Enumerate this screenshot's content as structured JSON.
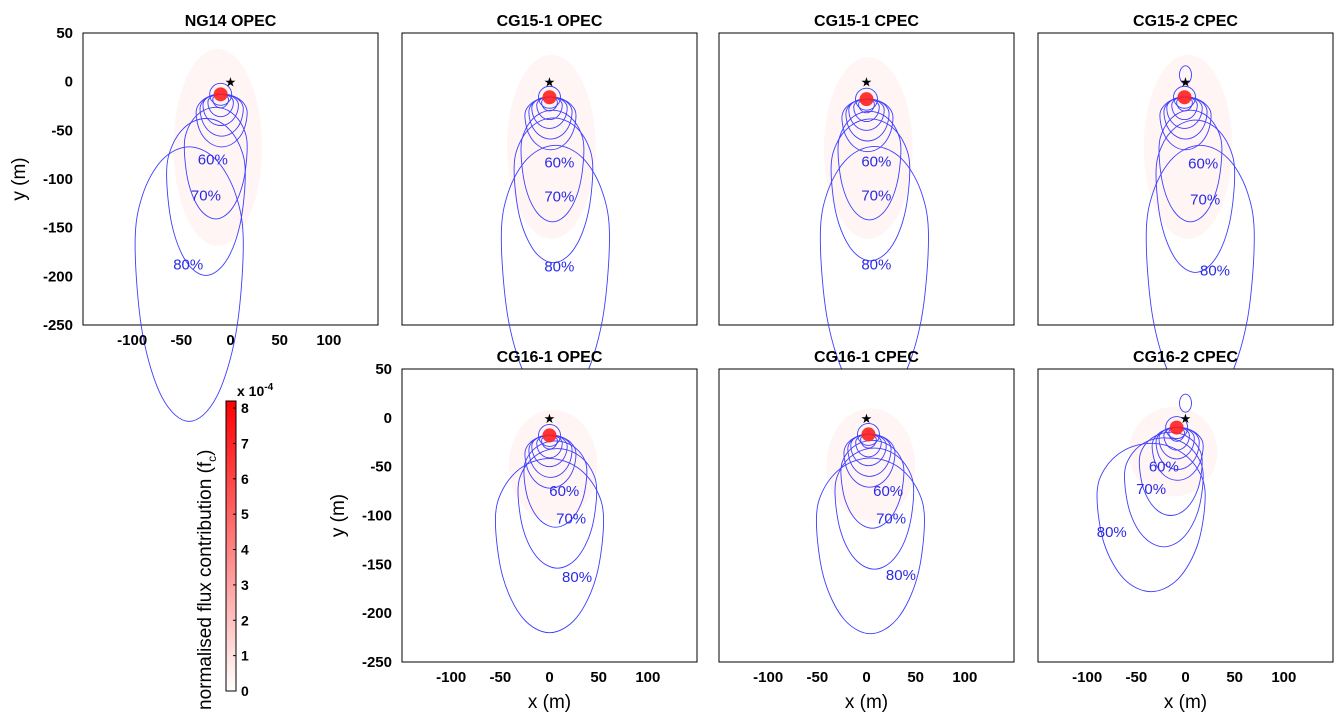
{
  "chart_data": {
    "type": "contour",
    "xlim": [
      -150,
      150
    ],
    "ylim": [
      -250,
      50
    ],
    "x_ticks": [
      -100,
      -50,
      0,
      50,
      100
    ],
    "y_ticks": [
      50,
      0,
      -50,
      -100,
      -150,
      -200,
      -250
    ],
    "xlabel": "x (m)",
    "ylabel": "y (m)",
    "contour_labels": [
      "60%",
      "70%",
      "80%"
    ],
    "tower_location": [
      0,
      0
    ],
    "colorbar": {
      "label": "normalised flux contribution (f",
      "label_sub": "c",
      "label_close": ")",
      "exponent_prefix": "x 10",
      "exponent_power": "-4",
      "min": 0,
      "max": 8.2,
      "ticks": [
        "0",
        "1",
        "2",
        "3",
        "4",
        "5",
        "6",
        "7",
        "8"
      ],
      "color_low": "#ffffff",
      "color_high": "#ff0000"
    },
    "panels": [
      {
        "title": "NG14 OPEC",
        "peak": [
          -10,
          -13
        ],
        "c60": [
          -15,
          -67
        ],
        "c70": [
          -25,
          -95
        ],
        "c80": [
          -42,
          -167
        ],
        "l60": [
          -18,
          -85
        ],
        "l70": [
          -25,
          -122
        ],
        "l80": [
          -43,
          -193
        ],
        "loop": false
      },
      {
        "title": "CG15-1 OPEC",
        "peak": [
          0,
          -16
        ],
        "c60": [
          3,
          -70
        ],
        "c70": [
          4,
          -90
        ],
        "c80": [
          6,
          -160
        ],
        "l60": [
          10,
          -88
        ],
        "l70": [
          10,
          -123
        ],
        "l80": [
          10,
          -195
        ],
        "loop": false
      },
      {
        "title": "CG15-1 CPEC",
        "peak": [
          0,
          -18
        ],
        "c60": [
          3,
          -70
        ],
        "c70": [
          4,
          -90
        ],
        "c80": [
          8,
          -160
        ],
        "l60": [
          10,
          -87
        ],
        "l70": [
          10,
          -122
        ],
        "l80": [
          10,
          -193
        ],
        "loop": false
      },
      {
        "title": "CG15-2 CPEC",
        "peak": [
          -1,
          -16
        ],
        "c60": [
          5,
          -70
        ],
        "c70": [
          10,
          -95
        ],
        "c80": [
          15,
          -160
        ],
        "l60": [
          18,
          -89
        ],
        "l70": [
          20,
          -126
        ],
        "l80": [
          30,
          -199
        ],
        "loop": true
      },
      {
        "title": "CG16-1 OPEC",
        "peak": [
          0,
          -18
        ],
        "c60": [
          6,
          -55
        ],
        "c70": [
          8,
          -75
        ],
        "c80": [
          0,
          -105
        ],
        "l60": [
          15,
          -80
        ],
        "l70": [
          22,
          -108
        ],
        "l80": [
          28,
          -168
        ],
        "loop": false
      },
      {
        "title": "CG16-1 CPEC",
        "peak": [
          2,
          -17
        ],
        "c60": [
          6,
          -55
        ],
        "c70": [
          8,
          -75
        ],
        "c80": [
          4,
          -105
        ],
        "l60": [
          22,
          -80
        ],
        "l70": [
          25,
          -108
        ],
        "l80": [
          35,
          -166
        ],
        "loop": false
      },
      {
        "title": "CG16-2 CPEC",
        "peak": [
          -9,
          -10
        ],
        "c60": [
          -15,
          -45
        ],
        "c70": [
          -22,
          -60
        ],
        "c80": [
          -35,
          -80
        ],
        "l60": [
          -22,
          -55
        ],
        "l70": [
          -35,
          -78
        ],
        "l80": [
          -75,
          -122
        ],
        "loop": true
      }
    ]
  }
}
